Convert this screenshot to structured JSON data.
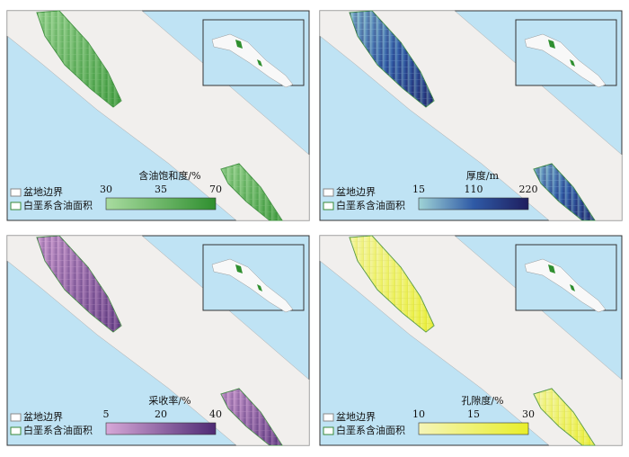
{
  "panels": [
    {
      "colorbar": {
        "title": "含油饱和度/%",
        "ticks": [
          30,
          35,
          70
        ],
        "colors": [
          "#a9dca0",
          "#2f8f2f"
        ]
      },
      "pattern": "#9fd19a",
      "legend": {
        "basin": "盆地边界",
        "area": "白垩系含油面积"
      }
    },
    {
      "colorbar": {
        "title": "厚度/m",
        "ticks": [
          15,
          110,
          220
        ],
        "colors": [
          "#9fd3d6",
          "#2f5aa6",
          "#1e1e5e"
        ]
      },
      "pattern": "#9fc6e6",
      "legend": {
        "basin": "盆地边界",
        "area": "白垩系含油面积"
      }
    },
    {
      "colorbar": {
        "title": "采收率/%",
        "ticks": [
          5,
          20,
          40
        ],
        "colors": [
          "#d7a8d8",
          "#4e2a74"
        ]
      },
      "pattern": "#d6b0d8",
      "legend": {
        "basin": "盆地边界",
        "area": "白垩系含油面积"
      }
    },
    {
      "colorbar": {
        "title": "孔隙度/%",
        "ticks": [
          10,
          15,
          30
        ],
        "colors": [
          "#f5f5b8",
          "#e8ee2a"
        ]
      },
      "pattern": "#c8c84a",
      "legend": {
        "basin": "盆地边界",
        "area": "白垩系含油面积"
      }
    }
  ]
}
